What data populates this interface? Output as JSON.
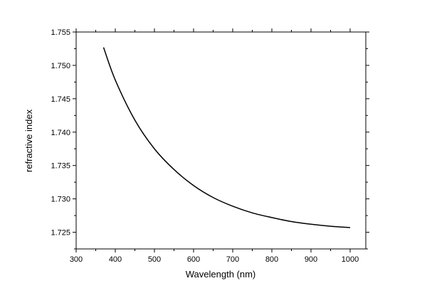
{
  "chart_data": {
    "type": "line",
    "xlabel": "Wavelength (nm)",
    "ylabel": "refractive index",
    "xlim": [
      300,
      1040
    ],
    "ylim": [
      1.7225,
      1.755
    ],
    "x_ticks": [
      300,
      400,
      500,
      600,
      700,
      800,
      900,
      1000
    ],
    "x_tick_labels": [
      "300",
      "400",
      "500",
      "600",
      "700",
      "800",
      "900",
      "1000"
    ],
    "y_ticks": [
      1.725,
      1.73,
      1.735,
      1.74,
      1.745,
      1.75,
      1.755
    ],
    "y_tick_labels": [
      "1.725",
      "1.730",
      "1.735",
      "1.740",
      "1.745",
      "1.750",
      "1.755"
    ],
    "grid": false,
    "legend": "none",
    "colors": {
      "line": "#000000",
      "axes": "#000000"
    },
    "series": [
      {
        "x": [
          370,
          400,
          450,
          500,
          550,
          600,
          650,
          700,
          750,
          800,
          850,
          900,
          950,
          1000
        ],
        "y": [
          1.7527,
          1.7478,
          1.7418,
          1.7375,
          1.7344,
          1.732,
          1.7302,
          1.7289,
          1.7279,
          1.7272,
          1.7266,
          1.7262,
          1.7259,
          1.7257
        ]
      }
    ]
  }
}
